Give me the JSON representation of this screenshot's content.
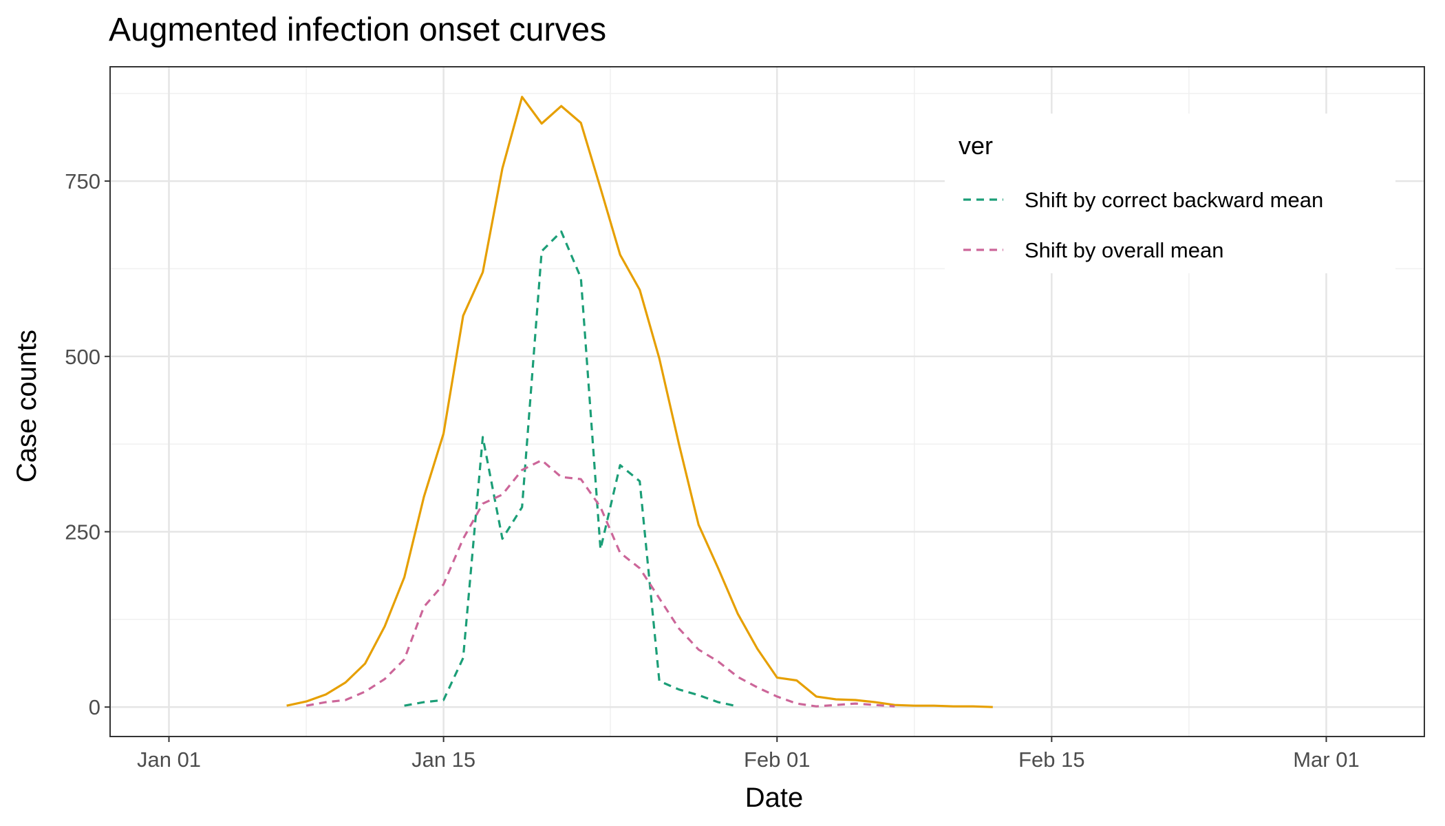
{
  "chart_data": {
    "type": "line",
    "title": "Augmented infection onset curves",
    "xlabel": "Date",
    "ylabel": "Case counts",
    "xlim": [
      "2020-12-29",
      "2021-03-06"
    ],
    "ylim": [
      -42,
      913
    ],
    "x_ticks": [
      {
        "label": "Jan 01",
        "date": "2021-01-01"
      },
      {
        "label": "Jan 15",
        "date": "2021-01-15"
      },
      {
        "label": "Feb 01",
        "date": "2021-02-01"
      },
      {
        "label": "Feb 15",
        "date": "2021-02-15"
      },
      {
        "label": "Mar 01",
        "date": "2021-03-01"
      }
    ],
    "y_ticks": [
      0,
      250,
      500,
      750
    ],
    "grid": true,
    "legend": {
      "title": "ver",
      "position": "top-right",
      "entries": [
        "Shift by correct backward mean",
        "Shift by overall mean"
      ]
    },
    "series": [
      {
        "color": "#E69F00",
        "dash": "solid",
        "points": [
          [
            "2021-01-07",
            2
          ],
          [
            "2021-01-08",
            8
          ],
          [
            "2021-01-09",
            18
          ],
          [
            "2021-01-10",
            35
          ],
          [
            "2021-01-11",
            62
          ],
          [
            "2021-01-12",
            115
          ],
          [
            "2021-01-13",
            185
          ],
          [
            "2021-01-14",
            300
          ],
          [
            "2021-01-15",
            390
          ],
          [
            "2021-01-16",
            558
          ],
          [
            "2021-01-17",
            620
          ],
          [
            "2021-01-18",
            768
          ],
          [
            "2021-01-19",
            870
          ],
          [
            "2021-01-20",
            832
          ],
          [
            "2021-01-21",
            857
          ],
          [
            "2021-01-22",
            833
          ],
          [
            "2021-01-23",
            740
          ],
          [
            "2021-01-24",
            645
          ],
          [
            "2021-01-25",
            595
          ],
          [
            "2021-01-26",
            497
          ],
          [
            "2021-01-27",
            375
          ],
          [
            "2021-01-28",
            260
          ],
          [
            "2021-01-29",
            198
          ],
          [
            "2021-01-30",
            133
          ],
          [
            "2021-01-31",
            83
          ],
          [
            "2021-02-01",
            42
          ],
          [
            "2021-02-02",
            38
          ],
          [
            "2021-02-03",
            15
          ],
          [
            "2021-02-04",
            11
          ],
          [
            "2021-02-05",
            10
          ],
          [
            "2021-02-06",
            7
          ],
          [
            "2021-02-07",
            3
          ],
          [
            "2021-02-08",
            2
          ],
          [
            "2021-02-09",
            2
          ],
          [
            "2021-02-10",
            1
          ],
          [
            "2021-02-11",
            1
          ],
          [
            "2021-02-12",
            0
          ]
        ]
      },
      {
        "name": "Shift by correct backward mean",
        "color": "#1B9E77",
        "dash": "dashed",
        "points": [
          [
            "2021-01-13",
            2
          ],
          [
            "2021-01-14",
            7
          ],
          [
            "2021-01-15",
            10
          ],
          [
            "2021-01-16",
            70
          ],
          [
            "2021-01-17",
            385
          ],
          [
            "2021-01-18",
            240
          ],
          [
            "2021-01-19",
            285
          ],
          [
            "2021-01-20",
            650
          ],
          [
            "2021-01-21",
            678
          ],
          [
            "2021-01-22",
            612
          ],
          [
            "2021-01-23",
            225
          ],
          [
            "2021-01-24",
            345
          ],
          [
            "2021-01-25",
            322
          ],
          [
            "2021-01-26",
            37
          ],
          [
            "2021-01-27",
            25
          ],
          [
            "2021-01-28",
            17
          ],
          [
            "2021-01-29",
            7
          ],
          [
            "2021-01-30",
            1
          ]
        ]
      },
      {
        "name": "Shift by overall mean",
        "color": "#CC6699",
        "dash": "dashed",
        "points": [
          [
            "2021-01-08",
            2
          ],
          [
            "2021-01-09",
            7
          ],
          [
            "2021-01-10",
            10
          ],
          [
            "2021-01-11",
            22
          ],
          [
            "2021-01-12",
            40
          ],
          [
            "2021-01-13",
            68
          ],
          [
            "2021-01-14",
            143
          ],
          [
            "2021-01-15",
            175
          ],
          [
            "2021-01-16",
            240
          ],
          [
            "2021-01-17",
            290
          ],
          [
            "2021-01-18",
            303
          ],
          [
            "2021-01-19",
            338
          ],
          [
            "2021-01-20",
            352
          ],
          [
            "2021-01-21",
            328
          ],
          [
            "2021-01-22",
            325
          ],
          [
            "2021-01-23",
            285
          ],
          [
            "2021-01-24",
            220
          ],
          [
            "2021-01-25",
            198
          ],
          [
            "2021-01-26",
            155
          ],
          [
            "2021-01-27",
            112
          ],
          [
            "2021-01-28",
            82
          ],
          [
            "2021-01-29",
            65
          ],
          [
            "2021-01-30",
            43
          ],
          [
            "2021-01-31",
            28
          ],
          [
            "2021-02-01",
            15
          ],
          [
            "2021-02-02",
            5
          ],
          [
            "2021-02-03",
            1
          ],
          [
            "2021-02-04",
            3
          ],
          [
            "2021-02-05",
            5
          ],
          [
            "2021-02-06",
            3
          ],
          [
            "2021-02-07",
            1
          ]
        ]
      }
    ]
  }
}
